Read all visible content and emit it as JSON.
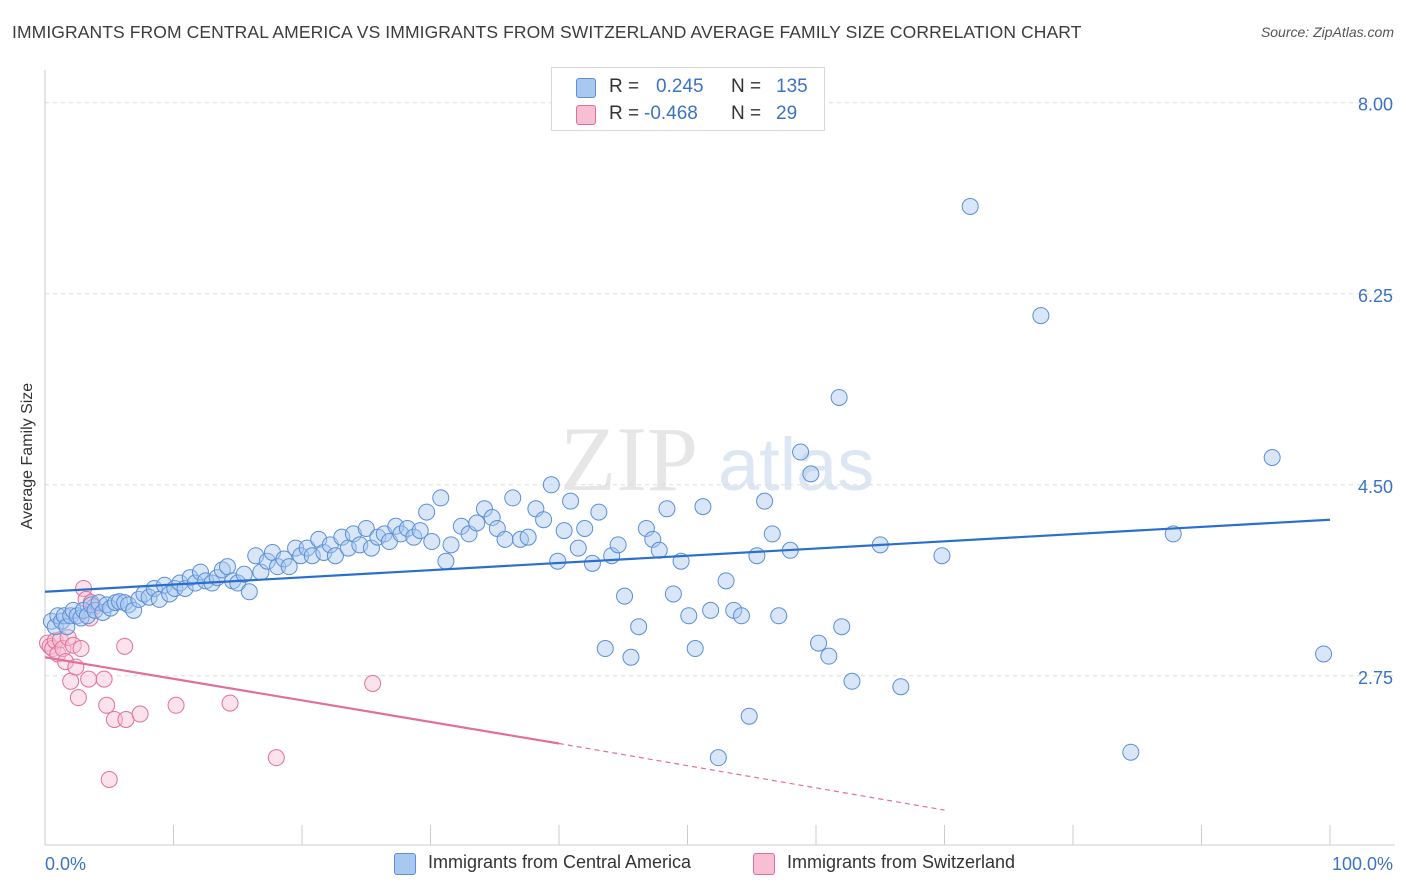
{
  "header": {
    "title": "IMMIGRANTS FROM CENTRAL AMERICA VS IMMIGRANTS FROM SWITZERLAND AVERAGE FAMILY SIZE CORRELATION CHART",
    "source": "Source: ZipAtlas.com"
  },
  "watermark": {
    "zip": "ZIP",
    "atlas": "atlas"
  },
  "colors": {
    "blue_fill": "#a9c8f0",
    "blue_stroke": "#5b8fd6",
    "blue_line": "#2a6fcf",
    "pink_fill": "#f7bfd3",
    "pink_stroke": "#e0709b",
    "pink_line": "#e0709b",
    "axis_text": "#3b73c4",
    "grid": "#dddddd"
  },
  "legend_top": {
    "rows": [
      {
        "r_label": "R =",
        "r_value": "0.245",
        "n_label": "N =",
        "n_value": "135"
      },
      {
        "r_label": "R =",
        "r_value": "-0.468",
        "n_label": "N =",
        "n_value": "29"
      }
    ]
  },
  "chart_data": {
    "type": "scatter",
    "title": "IMMIGRANTS FROM CENTRAL AMERICA VS IMMIGRANTS FROM SWITZERLAND AVERAGE FAMILY SIZE CORRELATION CHART",
    "xlabel": "",
    "ylabel": "Average Family Size",
    "xlim": [
      0,
      100
    ],
    "ylim": [
      1.2,
      8.3
    ],
    "x_tick_labels": [
      "0.0%",
      "100.0%"
    ],
    "y_ticks": [
      2.75,
      4.5,
      6.25,
      8.0
    ],
    "y_tick_labels": [
      "2.75",
      "4.50",
      "6.25",
      "8.00"
    ],
    "grid": true,
    "series": [
      {
        "name": "Immigrants from Central America",
        "trend": {
          "x": [
            0,
            100
          ],
          "y": [
            3.52,
            4.18
          ]
        },
        "points": [
          [
            0.5,
            3.25
          ],
          [
            0.8,
            3.2
          ],
          [
            1.0,
            3.3
          ],
          [
            1.3,
            3.25
          ],
          [
            1.5,
            3.3
          ],
          [
            1.7,
            3.2
          ],
          [
            2.0,
            3.3
          ],
          [
            2.2,
            3.35
          ],
          [
            2.5,
            3.3
          ],
          [
            2.8,
            3.28
          ],
          [
            3.0,
            3.35
          ],
          [
            3.3,
            3.3
          ],
          [
            3.6,
            3.4
          ],
          [
            3.9,
            3.35
          ],
          [
            4.2,
            3.42
          ],
          [
            4.5,
            3.33
          ],
          [
            4.8,
            3.4
          ],
          [
            5.1,
            3.37
          ],
          [
            5.5,
            3.42
          ],
          [
            5.8,
            3.43
          ],
          [
            6.2,
            3.42
          ],
          [
            6.5,
            3.4
          ],
          [
            6.9,
            3.35
          ],
          [
            7.3,
            3.45
          ],
          [
            7.7,
            3.5
          ],
          [
            8.1,
            3.47
          ],
          [
            8.5,
            3.55
          ],
          [
            8.9,
            3.45
          ],
          [
            9.3,
            3.58
          ],
          [
            9.7,
            3.5
          ],
          [
            10.1,
            3.55
          ],
          [
            10.5,
            3.6
          ],
          [
            10.9,
            3.55
          ],
          [
            11.3,
            3.65
          ],
          [
            11.7,
            3.6
          ],
          [
            12.1,
            3.7
          ],
          [
            12.5,
            3.62
          ],
          [
            13.0,
            3.6
          ],
          [
            13.4,
            3.65
          ],
          [
            13.8,
            3.72
          ],
          [
            14.2,
            3.75
          ],
          [
            14.6,
            3.62
          ],
          [
            15.0,
            3.6
          ],
          [
            15.5,
            3.68
          ],
          [
            15.9,
            3.52
          ],
          [
            16.4,
            3.85
          ],
          [
            16.8,
            3.7
          ],
          [
            17.3,
            3.8
          ],
          [
            17.7,
            3.88
          ],
          [
            18.1,
            3.75
          ],
          [
            18.6,
            3.82
          ],
          [
            19.0,
            3.75
          ],
          [
            19.5,
            3.92
          ],
          [
            19.9,
            3.85
          ],
          [
            20.4,
            3.92
          ],
          [
            20.8,
            3.85
          ],
          [
            21.3,
            4.0
          ],
          [
            21.7,
            3.88
          ],
          [
            22.2,
            3.95
          ],
          [
            22.6,
            3.85
          ],
          [
            23.1,
            4.02
          ],
          [
            23.6,
            3.92
          ],
          [
            24.0,
            4.05
          ],
          [
            24.5,
            3.95
          ],
          [
            25.0,
            4.1
          ],
          [
            25.4,
            3.92
          ],
          [
            25.9,
            4.02
          ],
          [
            26.4,
            4.05
          ],
          [
            26.8,
            3.98
          ],
          [
            27.3,
            4.12
          ],
          [
            27.7,
            4.05
          ],
          [
            28.2,
            4.1
          ],
          [
            28.7,
            4.02
          ],
          [
            29.2,
            4.08
          ],
          [
            29.7,
            4.25
          ],
          [
            30.1,
            3.98
          ],
          [
            30.8,
            4.38
          ],
          [
            31.2,
            3.8
          ],
          [
            31.6,
            3.95
          ],
          [
            32.4,
            4.12
          ],
          [
            33.0,
            4.05
          ],
          [
            33.6,
            4.15
          ],
          [
            34.2,
            4.28
          ],
          [
            34.8,
            4.2
          ],
          [
            35.2,
            4.1
          ],
          [
            35.8,
            4.0
          ],
          [
            36.4,
            4.38
          ],
          [
            37.0,
            4.0
          ],
          [
            37.6,
            4.02
          ],
          [
            38.2,
            4.28
          ],
          [
            38.8,
            4.18
          ],
          [
            39.4,
            4.5
          ],
          [
            39.9,
            3.8
          ],
          [
            40.4,
            4.08
          ],
          [
            40.9,
            4.35
          ],
          [
            41.5,
            3.92
          ],
          [
            42.0,
            4.1
          ],
          [
            42.6,
            3.78
          ],
          [
            43.1,
            4.25
          ],
          [
            43.6,
            3.0
          ],
          [
            44.1,
            3.85
          ],
          [
            44.6,
            3.95
          ],
          [
            45.1,
            3.48
          ],
          [
            45.6,
            2.92
          ],
          [
            46.2,
            3.2
          ],
          [
            46.8,
            4.1
          ],
          [
            47.3,
            4.0
          ],
          [
            47.8,
            3.9
          ],
          [
            48.4,
            4.28
          ],
          [
            48.9,
            3.5
          ],
          [
            49.5,
            3.8
          ],
          [
            50.1,
            3.3
          ],
          [
            50.6,
            3.0
          ],
          [
            51.2,
            4.3
          ],
          [
            51.8,
            3.35
          ],
          [
            52.4,
            2.0
          ],
          [
            53.0,
            3.62
          ],
          [
            53.6,
            3.35
          ],
          [
            54.2,
            3.3
          ],
          [
            54.8,
            2.38
          ],
          [
            55.4,
            3.85
          ],
          [
            56.0,
            4.35
          ],
          [
            56.6,
            4.05
          ],
          [
            57.1,
            3.3
          ],
          [
            58.0,
            3.9
          ],
          [
            58.8,
            4.8
          ],
          [
            59.6,
            4.6
          ],
          [
            60.2,
            3.05
          ],
          [
            61.0,
            2.93
          ],
          [
            61.8,
            5.3
          ],
          [
            62.0,
            3.2
          ],
          [
            62.8,
            2.7
          ],
          [
            65.0,
            3.95
          ],
          [
            66.6,
            2.65
          ],
          [
            69.8,
            3.85
          ],
          [
            72.0,
            7.05
          ],
          [
            77.5,
            6.05
          ],
          [
            84.5,
            2.05
          ],
          [
            87.8,
            4.05
          ],
          [
            95.5,
            4.75
          ],
          [
            99.5,
            2.95
          ]
        ]
      },
      {
        "name": "Immigrants from Switzerland",
        "trend": {
          "x": [
            0,
            40
          ],
          "y": [
            2.92,
            2.13
          ]
        },
        "trend_dashed": {
          "x": [
            40,
            70
          ],
          "y": [
            2.13,
            1.52
          ]
        },
        "points": [
          [
            0.2,
            3.05
          ],
          [
            0.4,
            3.02
          ],
          [
            0.6,
            3.0
          ],
          [
            0.8,
            3.07
          ],
          [
            1.0,
            2.95
          ],
          [
            1.2,
            3.08
          ],
          [
            1.4,
            3.0
          ],
          [
            1.6,
            2.88
          ],
          [
            1.8,
            3.1
          ],
          [
            2.0,
            2.7
          ],
          [
            2.2,
            3.03
          ],
          [
            2.4,
            2.83
          ],
          [
            2.6,
            2.55
          ],
          [
            2.8,
            3.0
          ],
          [
            3.0,
            3.55
          ],
          [
            3.2,
            3.45
          ],
          [
            3.4,
            2.72
          ],
          [
            3.6,
            3.42
          ],
          [
            3.8,
            3.38
          ],
          [
            3.5,
            3.28
          ],
          [
            4.6,
            2.72
          ],
          [
            4.8,
            2.48
          ],
          [
            5.0,
            1.8
          ],
          [
            5.4,
            2.35
          ],
          [
            6.2,
            3.02
          ],
          [
            6.3,
            2.35
          ],
          [
            7.4,
            2.4
          ],
          [
            10.2,
            2.48
          ],
          [
            18.0,
            2.0
          ],
          [
            25.5,
            2.68
          ],
          [
            14.4,
            2.5
          ]
        ]
      }
    ]
  },
  "legend_bottom": {
    "items": [
      {
        "label": "Immigrants from Central America"
      },
      {
        "label": "Immigrants from Switzerland"
      }
    ]
  }
}
